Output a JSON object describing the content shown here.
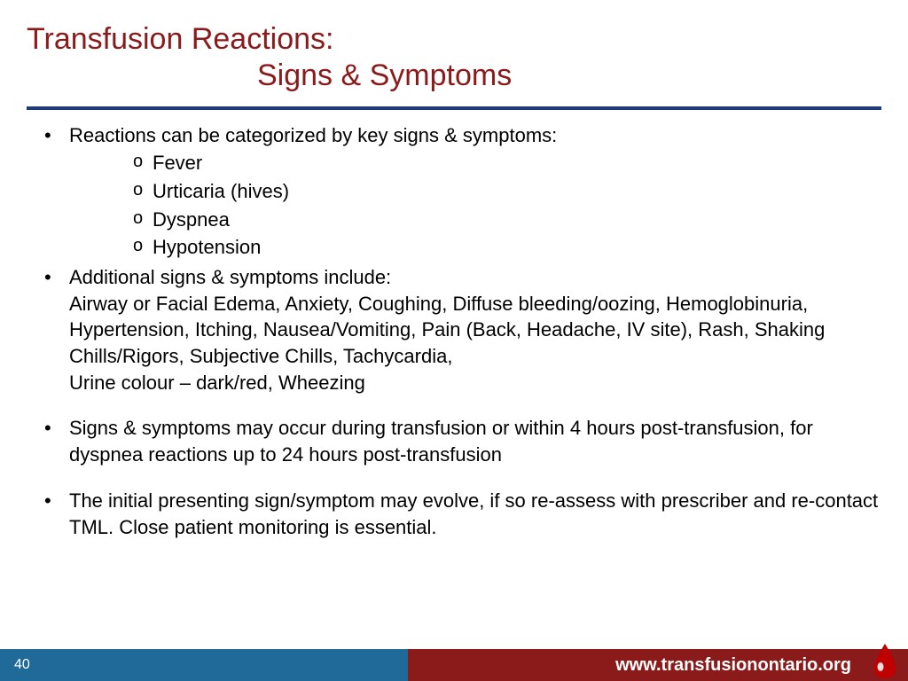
{
  "title": {
    "line1": "Transfusion Reactions:",
    "line2": "Signs & Symptoms"
  },
  "colors": {
    "title_text": "#8b1a1a",
    "rule": "#1f3c7a",
    "body_text": "#000000",
    "footer_left_bg": "#1f6a99",
    "footer_right_bg": "#8b1a1a",
    "footer_text": "#ffffff",
    "drop_fill": "#c00000",
    "drop_highlight": "#ffffff"
  },
  "typography": {
    "title_fontsize": 34,
    "body_fontsize": 22,
    "footer_url_fontsize": 20,
    "slide_number_fontsize": 16
  },
  "bullets": [
    {
      "text": "Reactions can be categorized by key signs & symptoms:",
      "sub": [
        "Fever",
        "Urticaria (hives)",
        "Dyspnea",
        "Hypotension"
      ]
    },
    {
      "text": "Additional signs & symptoms include:\nAirway or Facial Edema, Anxiety, Coughing, Diffuse bleeding/oozing, Hemoglobinuria, Hypertension, Itching, Nausea/Vomiting, Pain (Back, Headache, IV site), Rash, Shaking Chills/Rigors, Subjective Chills, Tachycardia,\nUrine colour – dark/red, Wheezing"
    },
    {
      "spacer": true,
      "text": "Signs & symptoms may occur during transfusion or within 4 hours post-transfusion, for dyspnea reactions up to 24 hours post-transfusion"
    },
    {
      "spacer": true,
      "text": "The initial presenting sign/symptom may evolve, if so re-assess with prescriber and re-contact TML. Close patient monitoring is essential."
    }
  ],
  "footer": {
    "slide_number": "40",
    "url": "www.transfusionontario.org"
  }
}
